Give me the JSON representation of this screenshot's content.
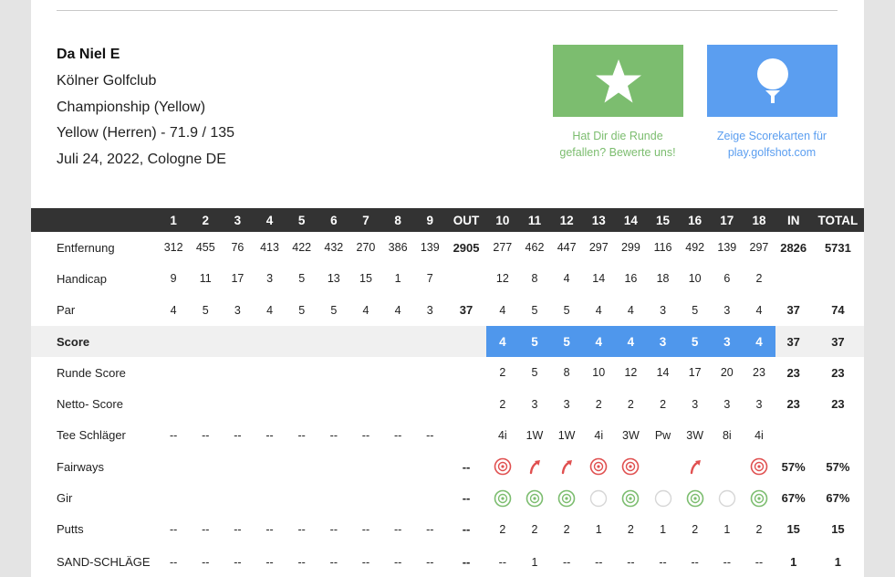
{
  "player": {
    "name": "Da Niel E",
    "club": "Kölner Golfclub",
    "course": "Championship (Yellow)",
    "tee": "Yellow (Herren) - 71.9 / 135",
    "date": "Juli 24, 2022, Cologne DE"
  },
  "actions": {
    "rate": {
      "icon": "star-icon",
      "caption_1": "Hat Dir die Runde",
      "caption_2": "gefallen? Bewerte uns!"
    },
    "scorecards": {
      "icon": "golf-ball-icon",
      "caption_1": "Zeige Scorekarten für",
      "caption_2": "play.golfshot.com"
    }
  },
  "colors": {
    "header": "#333333",
    "highlight": "#4f97ec",
    "green": "#7cbd6f",
    "blue": "#5b9ef0",
    "red": "#e05050"
  },
  "scorecard": {
    "headers": [
      "",
      "1",
      "2",
      "3",
      "4",
      "5",
      "6",
      "7",
      "8",
      "9",
      "OUT",
      "10",
      "11",
      "12",
      "13",
      "14",
      "15",
      "16",
      "17",
      "18",
      "IN",
      "TOTAL"
    ],
    "rows": [
      {
        "label": "Entfernung",
        "cells": [
          "312",
          "455",
          "76",
          "413",
          "422",
          "432",
          "270",
          "386",
          "139",
          "2905",
          "277",
          "462",
          "447",
          "297",
          "299",
          "116",
          "492",
          "139",
          "297",
          "2826",
          "5731"
        ]
      },
      {
        "label": "Handicap",
        "cells": [
          "9",
          "11",
          "17",
          "3",
          "5",
          "13",
          "15",
          "1",
          "7",
          "",
          "12",
          "8",
          "4",
          "14",
          "16",
          "18",
          "10",
          "6",
          "2",
          "",
          ""
        ]
      },
      {
        "label": "Par",
        "cells": [
          "4",
          "5",
          "3",
          "4",
          "5",
          "5",
          "4",
          "4",
          "3",
          "37",
          "4",
          "5",
          "5",
          "4",
          "4",
          "3",
          "5",
          "3",
          "4",
          "37",
          "74"
        ]
      },
      {
        "label": "Score",
        "cells": [
          "",
          "",
          "",
          "",
          "",
          "",
          "",
          "",
          "",
          "",
          "4",
          "5",
          "5",
          "4",
          "4",
          "3",
          "5",
          "3",
          "4",
          "37",
          "37"
        ]
      },
      {
        "label": "Runde Score",
        "cells": [
          "",
          "",
          "",
          "",
          "",
          "",
          "",
          "",
          "",
          "",
          "2",
          "5",
          "8",
          "10",
          "12",
          "14",
          "17",
          "20",
          "23",
          "23",
          "23"
        ]
      },
      {
        "label": "Netto- Score",
        "cells": [
          "",
          "",
          "",
          "",
          "",
          "",
          "",
          "",
          "",
          "",
          "2",
          "3",
          "3",
          "2",
          "2",
          "2",
          "3",
          "3",
          "3",
          "23",
          "23"
        ]
      },
      {
        "label": "Tee Schläger",
        "cells": [
          "--",
          "--",
          "--",
          "--",
          "--",
          "--",
          "--",
          "--",
          "--",
          "",
          "4i",
          "1W",
          "1W",
          "4i",
          "3W",
          "Pw",
          "3W",
          "8i",
          "4i",
          "",
          ""
        ]
      },
      {
        "label": "Fairways",
        "cells": [
          "",
          "",
          "",
          "",
          "",
          "",
          "",
          "",
          "",
          "--",
          "",
          "",
          "",
          "",
          "",
          "",
          "",
          "",
          "",
          "57%",
          "57%"
        ]
      },
      {
        "label": "Gir",
        "cells": [
          "",
          "",
          "",
          "",
          "",
          "",
          "",
          "",
          "",
          "--",
          "",
          "",
          "",
          "",
          "",
          "",
          "",
          "",
          "",
          "67%",
          "67%"
        ]
      },
      {
        "label": "Putts",
        "cells": [
          "--",
          "--",
          "--",
          "--",
          "--",
          "--",
          "--",
          "--",
          "--",
          "--",
          "2",
          "2",
          "2",
          "1",
          "2",
          "1",
          "2",
          "1",
          "2",
          "15",
          "15"
        ]
      },
      {
        "label": "SAND-SCHLÄGE",
        "cells": [
          "--",
          "--",
          "--",
          "--",
          "--",
          "--",
          "--",
          "--",
          "--",
          "--",
          "--",
          "1",
          "--",
          "--",
          "--",
          "--",
          "--",
          "--",
          "--",
          "1",
          "1"
        ]
      }
    ],
    "fairways_back9": [
      "target-icon",
      "arrow-right-icon",
      "arrow-right-icon",
      "target-icon",
      "target-icon",
      "",
      "arrow-right-icon",
      "",
      "target-icon"
    ],
    "gir_back9": [
      "green-target-icon",
      "green-target-icon",
      "green-target-icon",
      "empty-circle-icon",
      "green-target-icon",
      "empty-circle-icon",
      "green-target-icon",
      "empty-circle-icon",
      "green-target-icon"
    ]
  }
}
